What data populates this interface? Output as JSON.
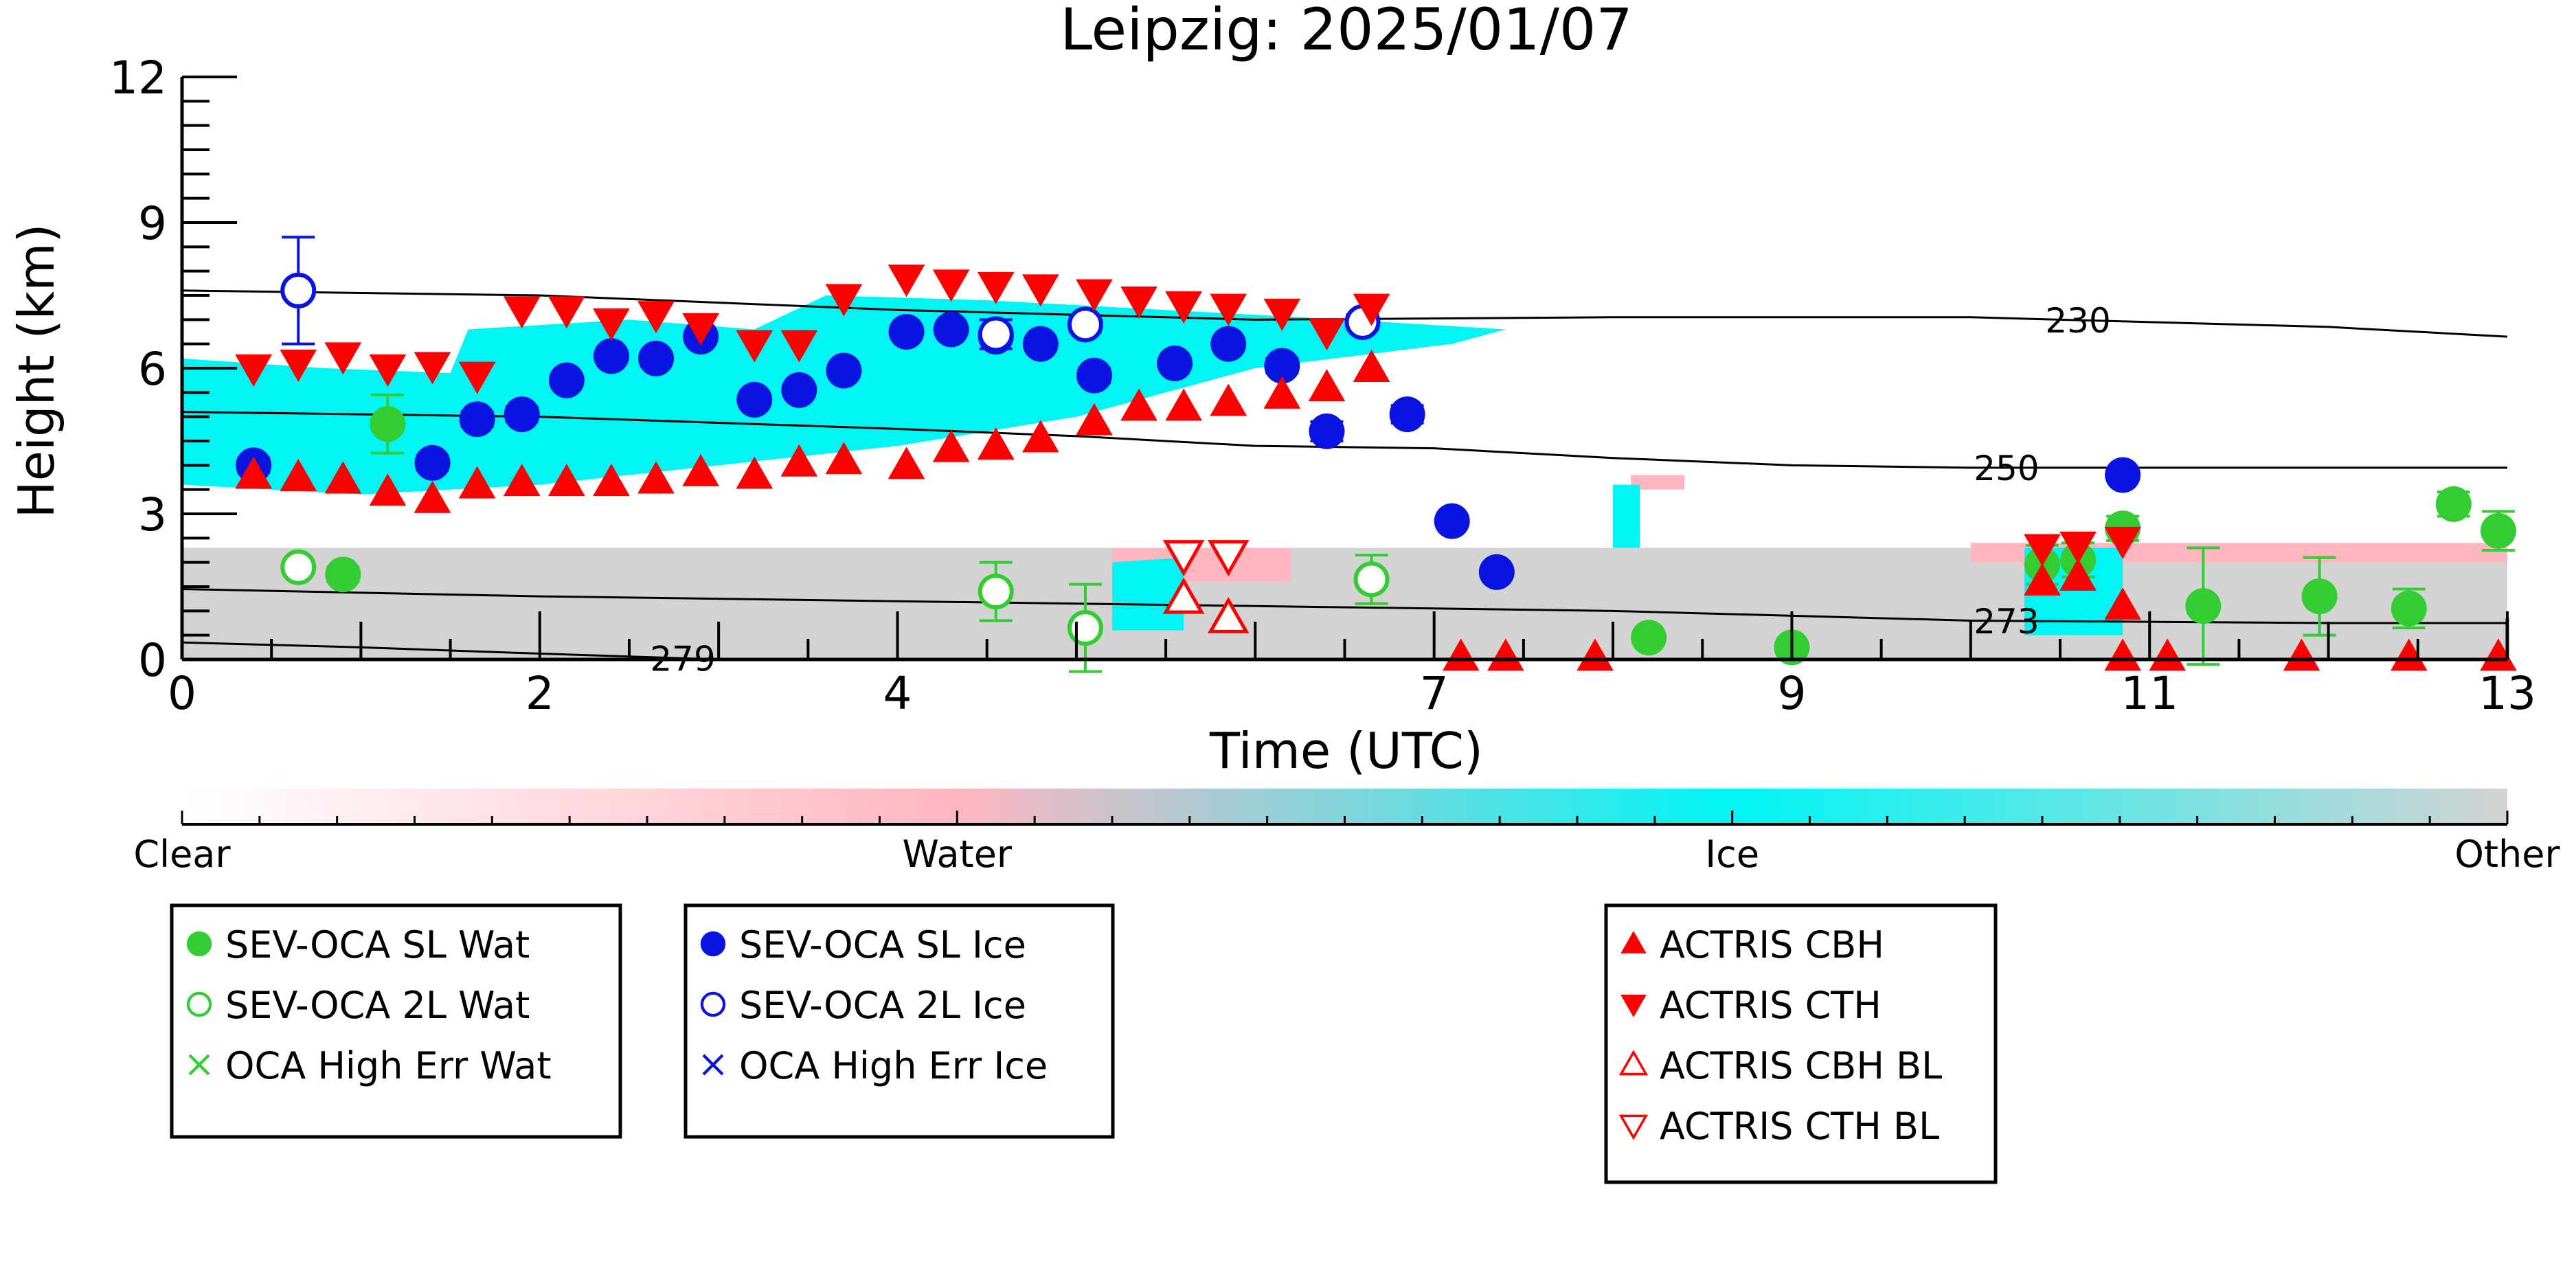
{
  "title": "Leipzig: 2025/01/07",
  "colors": {
    "ice": "#00f5f5",
    "water": "#ffb6c1",
    "other": "#d3d3d3",
    "sev_wat": "#33cc33",
    "sev_ice": "#0a14e0",
    "actris": "#ff0000",
    "contour": "#000000"
  },
  "colorbar": {
    "labels": [
      "Clear",
      "Water",
      "Ice",
      "Other"
    ]
  },
  "legends": [
    {
      "entries": [
        {
          "label": "SEV-OCA SL Wat",
          "marker": "filled-circle",
          "color": "#33cc33"
        },
        {
          "label": "SEV-OCA 2L Wat",
          "marker": "open-circle",
          "color": "#33cc33"
        },
        {
          "label": "OCA High Err Wat",
          "marker": "cross",
          "color": "#33cc33"
        }
      ]
    },
    {
      "entries": [
        {
          "label": "SEV-OCA SL Ice",
          "marker": "filled-circle",
          "color": "#0a14e0"
        },
        {
          "label": "SEV-OCA 2L Ice",
          "marker": "open-circle",
          "color": "#0a14e0"
        },
        {
          "label": "OCA High Err Ice",
          "marker": "cross",
          "color": "#0a14e0"
        }
      ]
    },
    {
      "entries": [
        {
          "label": "ACTRIS CBH",
          "marker": "triangle-up",
          "color": "#ff0000"
        },
        {
          "label": "ACTRIS CTH",
          "marker": "triangle-down",
          "color": "#ff0000"
        },
        {
          "label": "ACTRIS CBH BL",
          "marker": "open-triangle-up",
          "color": "#ff0000"
        },
        {
          "label": "ACTRIS CTH BL",
          "marker": "open-triangle-down",
          "color": "#ff0000"
        }
      ]
    }
  ],
  "chart_data": {
    "type": "scatter",
    "title": "Leipzig: 2025/01/07",
    "xlabel": "Time (UTC)",
    "ylabel": "Height (km)",
    "xlim": [
      0,
      13
    ],
    "ylim": [
      0,
      12
    ],
    "xticks": [
      0,
      2,
      4,
      7,
      9,
      11,
      13
    ],
    "xtick_labels": [
      "0",
      "2",
      "4",
      "7",
      "9",
      "11",
      "13"
    ],
    "yticks": [
      0,
      3,
      6,
      9,
      12
    ],
    "ytick_labels": [
      "0",
      "3",
      "6",
      "9",
      "12"
    ],
    "contours": [
      {
        "label": "230",
        "label_x": 10.6,
        "points": [
          [
            0,
            7.6
          ],
          [
            2,
            7.5
          ],
          [
            4,
            7.2
          ],
          [
            6,
            7.0
          ],
          [
            8,
            7.05
          ],
          [
            10,
            7.05
          ],
          [
            11,
            6.95
          ],
          [
            12,
            6.85
          ],
          [
            13,
            6.65
          ]
        ]
      },
      {
        "label": "250",
        "label_x": 10.2,
        "points": [
          [
            0,
            5.1
          ],
          [
            2,
            5.0
          ],
          [
            4,
            4.75
          ],
          [
            5,
            4.6
          ],
          [
            6,
            4.4
          ],
          [
            7,
            4.35
          ],
          [
            8,
            4.15
          ],
          [
            9,
            4.0
          ],
          [
            10,
            3.95
          ],
          [
            11,
            3.95
          ],
          [
            13,
            3.95
          ]
        ]
      },
      {
        "label": "273",
        "label_x": 10.2,
        "points": [
          [
            0,
            1.45
          ],
          [
            2,
            1.3
          ],
          [
            4,
            1.2
          ],
          [
            6,
            1.1
          ],
          [
            8,
            1.0
          ],
          [
            10,
            0.8
          ],
          [
            12,
            0.75
          ],
          [
            13,
            0.75
          ]
        ]
      },
      {
        "label": "279",
        "label_x": 2.8,
        "points": [
          [
            0,
            0.35
          ],
          [
            1,
            0.25
          ],
          [
            2,
            0.12
          ],
          [
            3,
            0.0
          ]
        ]
      }
    ],
    "cloud_regions": [
      {
        "class": "Ice",
        "outline": [
          [
            0,
            6.2
          ],
          [
            0.8,
            6.0
          ],
          [
            1.5,
            5.9
          ],
          [
            1.6,
            6.8
          ],
          [
            2.5,
            7.0
          ],
          [
            3.2,
            6.8
          ],
          [
            3.6,
            7.5
          ],
          [
            4.5,
            7.4
          ],
          [
            5.5,
            7.2
          ],
          [
            6.5,
            7.0
          ],
          [
            7.4,
            6.8
          ],
          [
            7.1,
            6.5
          ],
          [
            6.0,
            6.0
          ],
          [
            5.0,
            5.0
          ],
          [
            4.0,
            4.4
          ],
          [
            3.0,
            4.0
          ],
          [
            2.0,
            3.6
          ],
          [
            1.0,
            3.4
          ],
          [
            0,
            3.6
          ]
        ]
      },
      {
        "class": "Ice",
        "outline": [
          [
            5.2,
            2.0
          ],
          [
            5.6,
            2.1
          ],
          [
            5.6,
            0.6
          ],
          [
            5.2,
            0.6
          ]
        ]
      },
      {
        "class": "Ice",
        "outline": [
          [
            8.0,
            3.6
          ],
          [
            8.15,
            3.6
          ],
          [
            8.15,
            2.3
          ],
          [
            8.0,
            2.3
          ]
        ]
      },
      {
        "class": "Ice",
        "outline": [
          [
            10.3,
            2.3
          ],
          [
            10.85,
            2.3
          ],
          [
            10.85,
            0.5
          ],
          [
            10.3,
            0.5
          ]
        ]
      },
      {
        "class": "Water",
        "outline": [
          [
            5.2,
            2.3
          ],
          [
            6.2,
            2.3
          ],
          [
            6.2,
            1.6
          ],
          [
            5.2,
            1.6
          ]
        ]
      },
      {
        "class": "Water",
        "outline": [
          [
            10.0,
            2.4
          ],
          [
            13.0,
            2.4
          ],
          [
            13.0,
            2.0
          ],
          [
            10.0,
            2.0
          ]
        ]
      },
      {
        "class": "Water",
        "outline": [
          [
            8.1,
            3.8
          ],
          [
            8.4,
            3.8
          ],
          [
            8.4,
            3.5
          ],
          [
            8.1,
            3.5
          ]
        ]
      },
      {
        "class": "Other",
        "outline": [
          [
            0,
            2.3
          ],
          [
            13,
            2.3
          ],
          [
            13,
            0
          ],
          [
            0,
            0
          ]
        ]
      }
    ],
    "series": [
      {
        "name": "SEV-OCA SL Wat",
        "marker": "filled-circle",
        "color": "#33cc33",
        "points": [
          [
            0.9,
            1.75,
            0.15
          ],
          [
            1.15,
            4.85,
            0.6
          ],
          [
            8.2,
            0.45,
            0.1
          ],
          [
            9.0,
            0.25,
            0.1
          ],
          [
            10.4,
            1.95,
            0.4
          ],
          [
            10.6,
            2.05,
            0.35
          ],
          [
            10.85,
            2.7,
            0.25
          ],
          [
            11.3,
            1.1,
            1.2
          ],
          [
            11.95,
            1.3,
            0.8
          ],
          [
            12.45,
            1.05,
            0.4
          ],
          [
            12.7,
            3.2,
            0.25
          ],
          [
            12.95,
            2.65,
            0.4
          ]
        ]
      },
      {
        "name": "SEV-OCA 2L Wat",
        "marker": "open-circle",
        "color": "#33cc33",
        "points": [
          [
            0.65,
            1.9,
            0.12
          ],
          [
            4.55,
            1.4,
            0.6
          ],
          [
            5.05,
            0.65,
            0.9
          ],
          [
            6.65,
            1.65,
            0.5
          ]
        ]
      },
      {
        "name": "SEV-OCA SL Ice",
        "marker": "filled-circle",
        "color": "#0a14e0",
        "points": [
          [
            0.4,
            4.0,
            0.15
          ],
          [
            1.4,
            4.05,
            0.15
          ],
          [
            1.65,
            4.95,
            0.15
          ],
          [
            1.9,
            5.05,
            0.15
          ],
          [
            2.15,
            5.75,
            0.1
          ],
          [
            2.4,
            6.25,
            0.1
          ],
          [
            2.65,
            6.2,
            0.1
          ],
          [
            2.9,
            6.65,
            0.1
          ],
          [
            3.2,
            5.35,
            0.1
          ],
          [
            3.45,
            5.55,
            0.1
          ],
          [
            3.7,
            5.95,
            0.1
          ],
          [
            4.05,
            6.75,
            0.1
          ],
          [
            4.3,
            6.8,
            0.1
          ],
          [
            4.55,
            6.65,
            0.1
          ],
          [
            4.8,
            6.5,
            0.1
          ],
          [
            5.1,
            5.85,
            0.15
          ],
          [
            5.55,
            6.1,
            0.12
          ],
          [
            5.85,
            6.5,
            0.12
          ],
          [
            6.15,
            6.05,
            0.15
          ],
          [
            6.4,
            4.7,
            0.2
          ],
          [
            6.85,
            5.05,
            0.18
          ],
          [
            7.1,
            2.85,
            0.1
          ],
          [
            7.35,
            1.8,
            0.1
          ],
          [
            10.85,
            3.8,
            0.1
          ]
        ]
      },
      {
        "name": "SEV-OCA 2L Ice",
        "marker": "open-circle",
        "color": "#0a14e0",
        "points": [
          [
            0.65,
            7.6,
            1.1
          ],
          [
            4.55,
            6.7,
            0.3
          ],
          [
            5.05,
            6.9,
            0.15
          ],
          [
            6.6,
            6.95,
            0.15
          ]
        ]
      },
      {
        "name": "ACTRIS CBH",
        "marker": "triangle-up",
        "color": "#ff0000",
        "points": [
          [
            0.4,
            3.8
          ],
          [
            0.65,
            3.75
          ],
          [
            0.9,
            3.7
          ],
          [
            1.15,
            3.45
          ],
          [
            1.4,
            3.3
          ],
          [
            1.65,
            3.6
          ],
          [
            1.9,
            3.65
          ],
          [
            2.15,
            3.65
          ],
          [
            2.4,
            3.65
          ],
          [
            2.65,
            3.7
          ],
          [
            2.9,
            3.85
          ],
          [
            3.2,
            3.8
          ],
          [
            3.45,
            4.05
          ],
          [
            3.7,
            4.1
          ],
          [
            4.05,
            4.0
          ],
          [
            4.3,
            4.35
          ],
          [
            4.55,
            4.4
          ],
          [
            4.8,
            4.55
          ],
          [
            5.1,
            4.9
          ],
          [
            5.35,
            5.2
          ],
          [
            5.6,
            5.2
          ],
          [
            5.85,
            5.3
          ],
          [
            6.15,
            5.45
          ],
          [
            6.4,
            5.6
          ],
          [
            6.65,
            6.0
          ],
          [
            10.4,
            1.6
          ],
          [
            10.6,
            1.7
          ],
          [
            10.85,
            1.1
          ],
          [
            10.85,
            0.05
          ],
          [
            11.1,
            0.05
          ],
          [
            11.85,
            0.05
          ],
          [
            12.45,
            0.05
          ],
          [
            12.95,
            0.05
          ],
          [
            7.15,
            0.05
          ],
          [
            7.4,
            0.05
          ],
          [
            7.9,
            0.05
          ]
        ]
      },
      {
        "name": "ACTRIS CTH",
        "marker": "triangle-down",
        "color": "#ff0000",
        "points": [
          [
            0.4,
            6.0
          ],
          [
            0.65,
            6.1
          ],
          [
            0.9,
            6.25
          ],
          [
            1.15,
            6.0
          ],
          [
            1.4,
            6.05
          ],
          [
            1.65,
            5.85
          ],
          [
            1.9,
            7.2
          ],
          [
            2.15,
            7.2
          ],
          [
            2.4,
            6.95
          ],
          [
            2.65,
            7.1
          ],
          [
            2.9,
            6.85
          ],
          [
            3.2,
            6.5
          ],
          [
            3.45,
            6.5
          ],
          [
            3.7,
            7.45
          ],
          [
            4.05,
            7.85
          ],
          [
            4.3,
            7.75
          ],
          [
            4.55,
            7.7
          ],
          [
            4.8,
            7.65
          ],
          [
            5.1,
            7.55
          ],
          [
            5.35,
            7.4
          ],
          [
            5.6,
            7.3
          ],
          [
            5.85,
            7.25
          ],
          [
            6.15,
            7.15
          ],
          [
            6.4,
            6.75
          ],
          [
            6.65,
            7.25
          ],
          [
            10.4,
            2.3
          ],
          [
            10.6,
            2.35
          ],
          [
            10.85,
            2.45
          ]
        ]
      },
      {
        "name": "ACTRIS CBH BL",
        "marker": "open-triangle-up",
        "color": "#ff0000",
        "points": [
          [
            5.6,
            1.25
          ],
          [
            5.85,
            0.85
          ]
        ]
      },
      {
        "name": "ACTRIS CTH BL",
        "marker": "open-triangle-down",
        "color": "#ff0000",
        "points": [
          [
            5.6,
            2.15
          ],
          [
            5.85,
            2.15
          ]
        ]
      }
    ],
    "grid": false
  }
}
